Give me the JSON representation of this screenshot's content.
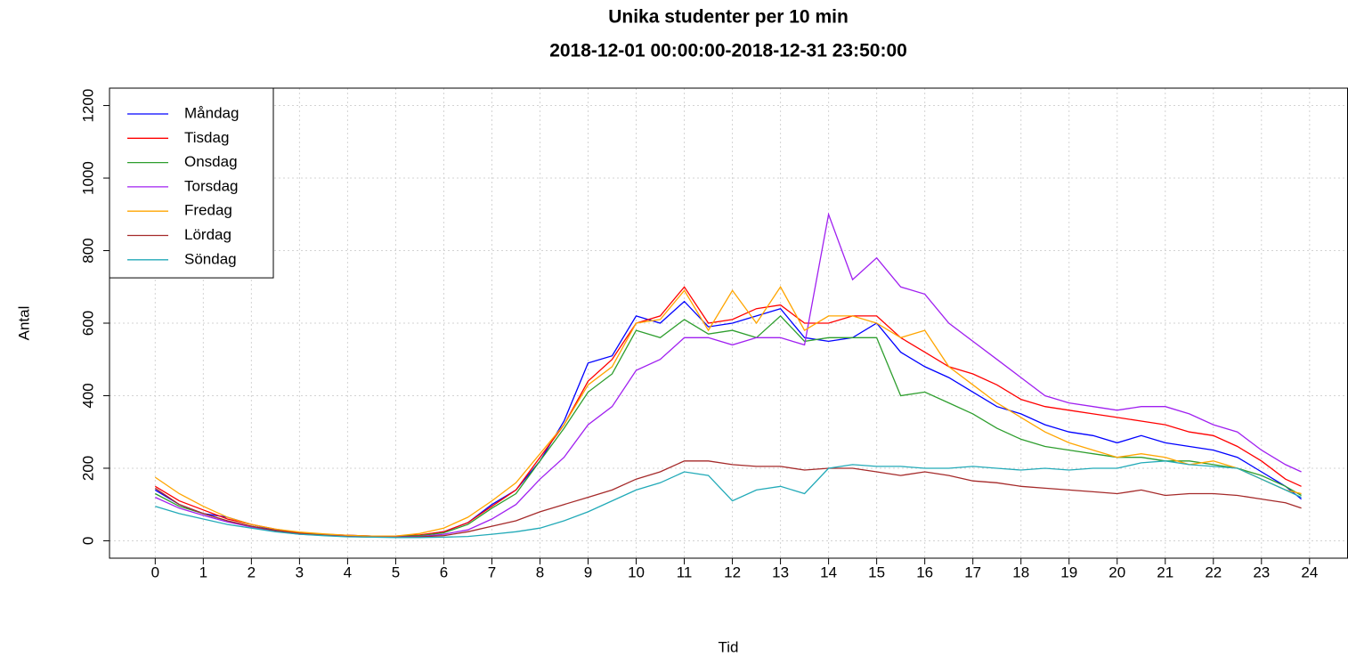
{
  "chart_data": {
    "type": "line",
    "title": "Unika studenter per 10 min",
    "subtitle": "2018-12-01 00:00:00-2018-12-31 23:50:00",
    "x_label": "Tid",
    "y_label": "Antal",
    "x": [
      0,
      0.5,
      1,
      1.5,
      2,
      2.5,
      3,
      3.5,
      4,
      4.5,
      5,
      5.5,
      6,
      6.5,
      7,
      7.5,
      8,
      8.5,
      9,
      9.5,
      10,
      10.5,
      11,
      11.5,
      12,
      12.5,
      13,
      13.5,
      14,
      14.5,
      15,
      15.5,
      16,
      16.5,
      17,
      17.5,
      18,
      18.5,
      19,
      19.5,
      20,
      20.5,
      21,
      21.5,
      22,
      22.5,
      23,
      23.5,
      23.83
    ],
    "series": [
      {
        "name": "Måndag",
        "color": "#0000ff",
        "values": [
          140,
          100,
          75,
          65,
          45,
          30,
          22,
          18,
          15,
          13,
          12,
          15,
          25,
          50,
          100,
          140,
          220,
          330,
          490,
          510,
          620,
          600,
          660,
          590,
          600,
          620,
          640,
          560,
          550,
          560,
          600,
          520,
          480,
          450,
          410,
          370,
          350,
          320,
          300,
          290,
          270,
          290,
          270,
          260,
          250,
          230,
          190,
          150,
          115
        ]
      },
      {
        "name": "Tisdag",
        "color": "#ff0000",
        "values": [
          150,
          110,
          85,
          60,
          45,
          32,
          22,
          18,
          15,
          13,
          13,
          16,
          25,
          50,
          95,
          140,
          230,
          320,
          440,
          500,
          600,
          620,
          700,
          600,
          610,
          640,
          650,
          600,
          600,
          620,
          620,
          560,
          520,
          480,
          460,
          430,
          390,
          370,
          360,
          350,
          340,
          330,
          320,
          300,
          290,
          260,
          220,
          170,
          150
        ]
      },
      {
        "name": "Onsdag",
        "color": "#2e9e2e",
        "values": [
          130,
          95,
          75,
          55,
          40,
          28,
          20,
          16,
          14,
          12,
          12,
          14,
          22,
          45,
          90,
          130,
          220,
          310,
          410,
          460,
          580,
          560,
          610,
          570,
          580,
          560,
          620,
          550,
          560,
          560,
          560,
          400,
          410,
          380,
          350,
          310,
          280,
          260,
          250,
          240,
          230,
          230,
          220,
          220,
          210,
          200,
          180,
          150,
          125
        ]
      },
      {
        "name": "Torsdag",
        "color": "#a020f0",
        "values": [
          120,
          90,
          70,
          52,
          38,
          26,
          18,
          15,
          13,
          12,
          11,
          12,
          18,
          30,
          60,
          100,
          170,
          230,
          320,
          370,
          470,
          500,
          560,
          560,
          540,
          560,
          560,
          540,
          900,
          720,
          780,
          700,
          680,
          600,
          550,
          500,
          450,
          400,
          380,
          370,
          360,
          370,
          370,
          350,
          320,
          300,
          250,
          210,
          190
        ]
      },
      {
        "name": "Fredag",
        "color": "#ffa500",
        "values": [
          175,
          130,
          95,
          65,
          45,
          32,
          24,
          19,
          15,
          13,
          13,
          20,
          35,
          65,
          110,
          160,
          240,
          320,
          430,
          480,
          600,
          610,
          690,
          580,
          690,
          600,
          700,
          580,
          620,
          620,
          600,
          560,
          580,
          480,
          430,
          380,
          340,
          300,
          270,
          250,
          230,
          240,
          230,
          210,
          220,
          200,
          170,
          140,
          130
        ]
      },
      {
        "name": "Lördag",
        "color": "#a52a2a",
        "values": [
          145,
          100,
          75,
          55,
          40,
          28,
          20,
          15,
          12,
          10,
          10,
          11,
          14,
          25,
          40,
          55,
          80,
          100,
          120,
          140,
          170,
          190,
          220,
          220,
          210,
          205,
          205,
          195,
          200,
          200,
          190,
          180,
          190,
          180,
          165,
          160,
          150,
          145,
          140,
          135,
          130,
          140,
          125,
          130,
          130,
          125,
          115,
          105,
          90
        ]
      },
      {
        "name": "Söndag",
        "color": "#22aab8",
        "values": [
          95,
          75,
          60,
          45,
          35,
          25,
          18,
          14,
          11,
          10,
          9,
          9,
          10,
          12,
          18,
          25,
          35,
          55,
          80,
          110,
          140,
          160,
          190,
          180,
          110,
          140,
          150,
          130,
          200,
          210,
          205,
          205,
          200,
          200,
          205,
          200,
          195,
          200,
          195,
          200,
          200,
          215,
          220,
          210,
          205,
          200,
          170,
          140,
          120
        ]
      }
    ],
    "xlim": [
      -0.95,
      24.79
    ],
    "ylim": [
      -48,
      1248
    ],
    "xticks": [
      0,
      1,
      2,
      3,
      4,
      5,
      6,
      7,
      8,
      9,
      10,
      11,
      12,
      13,
      14,
      15,
      16,
      17,
      18,
      19,
      20,
      21,
      22,
      23,
      24
    ],
    "yticks": [
      0,
      200,
      400,
      600,
      800,
      1000,
      1200
    ],
    "grid": true,
    "legend": "top-left"
  }
}
